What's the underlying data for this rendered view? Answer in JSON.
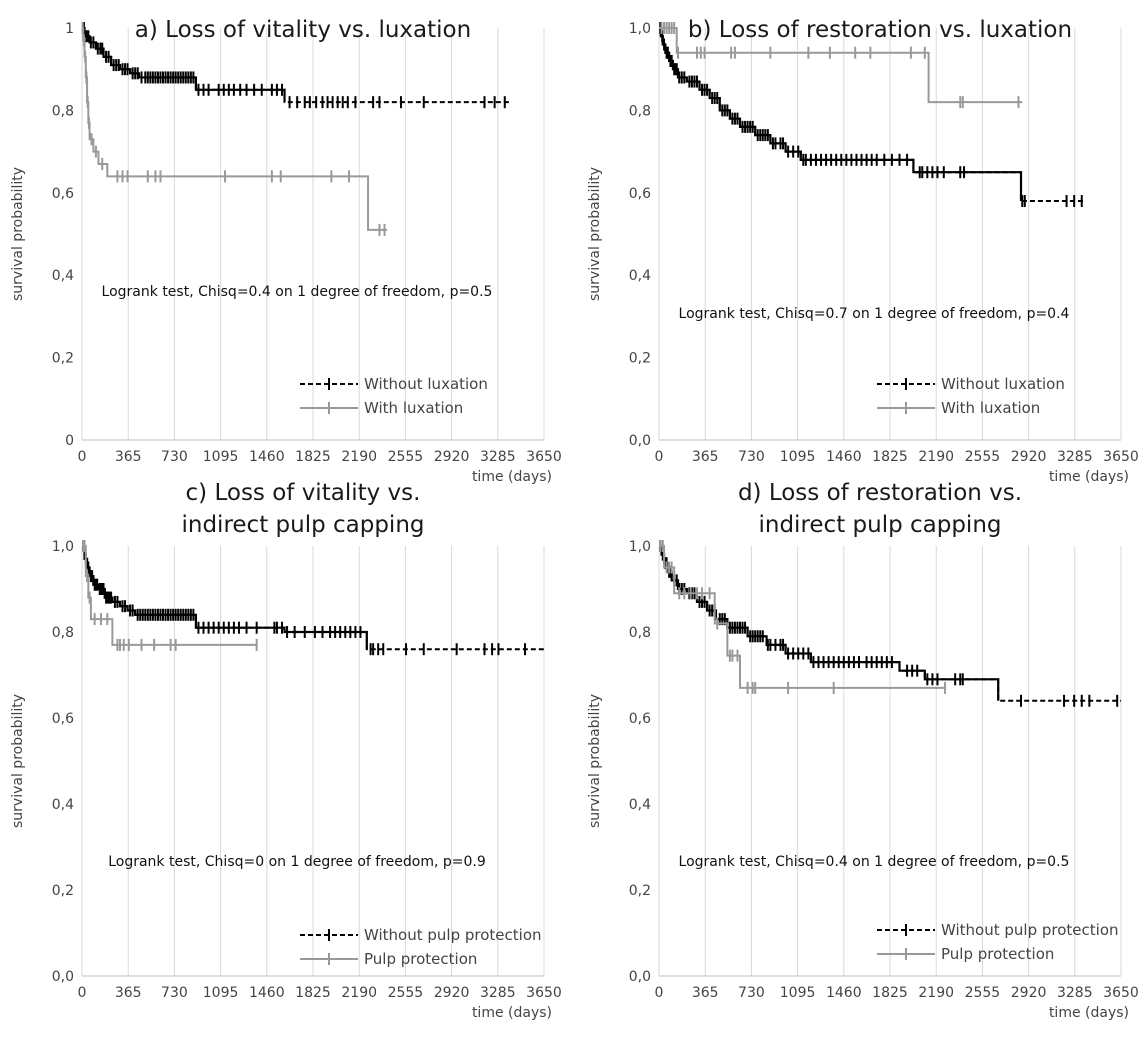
{
  "chart_data": [
    {
      "type": "line",
      "subtype": "kaplan-meier",
      "title_lines": [
        "a) Loss of vitality vs. luxation"
      ],
      "xlabel": "time (days)",
      "ylabel": "survival probability",
      "xlim": [
        0,
        3650
      ],
      "ylim": [
        0,
        1
      ],
      "x_ticks": [
        "0",
        "365",
        "730",
        "1095",
        "1460",
        "1825",
        "2190",
        "2555",
        "2920",
        "3285",
        "3650"
      ],
      "y_ticks": [
        "0",
        "0,2",
        "0,4",
        "0,6",
        "0,8",
        "1"
      ],
      "annotation": "Logrank test, Chisq=0.4 on 1 degree of freedom, p=0.5",
      "legend_position": "bottom-right",
      "grid": "vertical",
      "series": [
        {
          "name": "Without luxation",
          "color": "#000000",
          "style": "dashed-after-last-event",
          "steps": [
            [
              0,
              1
            ],
            [
              20,
              0.98
            ],
            [
              60,
              0.965
            ],
            [
              110,
              0.95
            ],
            [
              170,
              0.93
            ],
            [
              230,
              0.91
            ],
            [
              300,
              0.9
            ],
            [
              380,
              0.89
            ],
            [
              450,
              0.88
            ],
            [
              900,
              0.85
            ],
            [
              1600,
              0.82
            ]
          ],
          "end_x": 3380,
          "censored": [
            15,
            35,
            50,
            70,
            90,
            125,
            145,
            160,
            190,
            210,
            250,
            270,
            290,
            320,
            340,
            360,
            400,
            420,
            440,
            470,
            500,
            520,
            540,
            560,
            580,
            600,
            620,
            640,
            660,
            680,
            700,
            720,
            740,
            760,
            780,
            800,
            820,
            840,
            860,
            880,
            920,
            960,
            1000,
            1080,
            1120,
            1160,
            1200,
            1250,
            1300,
            1360,
            1420,
            1500,
            1540,
            1580,
            1640,
            1700,
            1760,
            1800,
            1850,
            1900,
            1940,
            1980,
            2020,
            2060,
            2100,
            2160,
            2300,
            2350,
            2520,
            2700,
            3180,
            3260,
            3340
          ]
        },
        {
          "name": "With luxation",
          "color": "#999999",
          "style": "solid",
          "steps": [
            [
              0,
              1
            ],
            [
              10,
              0.97
            ],
            [
              20,
              0.93
            ],
            [
              30,
              0.88
            ],
            [
              40,
              0.82
            ],
            [
              50,
              0.77
            ],
            [
              60,
              0.73
            ],
            [
              90,
              0.7
            ],
            [
              130,
              0.67
            ],
            [
              200,
              0.64
            ],
            [
              2260,
              0.51
            ]
          ],
          "end_x": 2410,
          "censored": [
            5,
            15,
            25,
            35,
            45,
            55,
            75,
            110,
            160,
            280,
            320,
            360,
            520,
            580,
            620,
            1130,
            1500,
            1570,
            1970,
            2110,
            2350,
            2390
          ]
        }
      ]
    },
    {
      "type": "line",
      "subtype": "kaplan-meier",
      "title_lines": [
        "b) Loss of restoration vs. luxation"
      ],
      "xlabel": "time (days)",
      "ylabel": "survival probability",
      "xlim": [
        0,
        3650
      ],
      "ylim": [
        0,
        1
      ],
      "x_ticks": [
        "0",
        "365",
        "730",
        "1095",
        "1460",
        "1825",
        "2190",
        "2555",
        "2920",
        "3285",
        "3650"
      ],
      "y_ticks": [
        "0,0",
        "0,2",
        "0,4",
        "0,6",
        "0,8",
        "1,0"
      ],
      "annotation": "Logrank test, Chisq=0.7 on 1 degree of freedom, p=0.4",
      "legend_position": "bottom-right",
      "grid": "vertical",
      "series": [
        {
          "name": "Without luxation",
          "color": "#000000",
          "style": "dashed-after-last-event",
          "steps": [
            [
              0,
              1
            ],
            [
              15,
              0.98
            ],
            [
              30,
              0.96
            ],
            [
              50,
              0.94
            ],
            [
              80,
              0.92
            ],
            [
              110,
              0.9
            ],
            [
              150,
              0.88
            ],
            [
              220,
              0.87
            ],
            [
              320,
              0.85
            ],
            [
              400,
              0.83
            ],
            [
              480,
              0.8
            ],
            [
              560,
              0.78
            ],
            [
              640,
              0.76
            ],
            [
              760,
              0.74
            ],
            [
              880,
              0.72
            ],
            [
              1000,
              0.7
            ],
            [
              1120,
              0.68
            ],
            [
              2010,
              0.65
            ],
            [
              2860,
              0.58
            ]
          ],
          "end_x": 3370,
          "censored": [
            10,
            25,
            40,
            60,
            70,
            90,
            100,
            120,
            130,
            140,
            160,
            180,
            200,
            240,
            260,
            280,
            300,
            340,
            360,
            380,
            420,
            440,
            460,
            500,
            520,
            540,
            580,
            600,
            620,
            660,
            680,
            700,
            720,
            740,
            780,
            800,
            820,
            840,
            860,
            900,
            920,
            960,
            980,
            1020,
            1060,
            1100,
            1140,
            1160,
            1200,
            1240,
            1280,
            1320,
            1360,
            1400,
            1440,
            1480,
            1520,
            1560,
            1600,
            1640,
            1680,
            1720,
            1780,
            1840,
            1900,
            1960,
            2060,
            2080,
            2120,
            2160,
            2200,
            2250,
            2380,
            2410,
            2870,
            2890,
            3220,
            3280,
            3340
          ]
        },
        {
          "name": "With luxation",
          "color": "#999999",
          "style": "solid",
          "steps": [
            [
              0,
              1
            ],
            [
              140,
              0.94
            ],
            [
              2130,
              0.82
            ]
          ],
          "end_x": 2870,
          "censored": [
            20,
            40,
            60,
            80,
            100,
            120,
            150,
            300,
            330,
            360,
            570,
            600,
            880,
            1180,
            1350,
            1550,
            1670,
            1990,
            2100,
            2380,
            2400,
            2840
          ]
        }
      ]
    },
    {
      "type": "line",
      "subtype": "kaplan-meier",
      "title_lines": [
        "c) Loss of vitality vs.",
        "indirect pulp capping"
      ],
      "xlabel": "time (days)",
      "ylabel": "survival probability",
      "xlim": [
        0,
        3650
      ],
      "ylim": [
        0,
        1
      ],
      "x_ticks": [
        "0",
        "365",
        "730",
        "1095",
        "1460",
        "1825",
        "2190",
        "2555",
        "2920",
        "3285",
        "3650"
      ],
      "y_ticks": [
        "0,0",
        "0,2",
        "0,4",
        "0,6",
        "0,8",
        "1,0"
      ],
      "annotation": "Logrank test, Chisq=0 on 1 degree of freedom, p=0.9",
      "legend_position": "bottom-right",
      "grid": "vertical",
      "series": [
        {
          "name": "Without pulp protection",
          "color": "#000000",
          "style": "dashed-after-last-event",
          "steps": [
            [
              0,
              1
            ],
            [
              20,
              0.97
            ],
            [
              40,
              0.95
            ],
            [
              60,
              0.93
            ],
            [
              90,
              0.91
            ],
            [
              130,
              0.9
            ],
            [
              180,
              0.88
            ],
            [
              240,
              0.87
            ],
            [
              300,
              0.86
            ],
            [
              360,
              0.85
            ],
            [
              420,
              0.84
            ],
            [
              900,
              0.81
            ],
            [
              1600,
              0.8
            ],
            [
              2250,
              0.76
            ]
          ],
          "end_x": 3650,
          "censored": [
            10,
            30,
            50,
            70,
            80,
            100,
            110,
            120,
            140,
            150,
            160,
            170,
            190,
            200,
            210,
            220,
            230,
            260,
            280,
            320,
            340,
            380,
            400,
            440,
            460,
            480,
            500,
            520,
            540,
            560,
            580,
            600,
            620,
            640,
            660,
            680,
            700,
            720,
            740,
            760,
            780,
            800,
            820,
            840,
            860,
            880,
            920,
            960,
            1000,
            1040,
            1080,
            1120,
            1160,
            1200,
            1240,
            1300,
            1380,
            1520,
            1540,
            1580,
            1620,
            1680,
            1760,
            1840,
            1900,
            1960,
            2000,
            2040,
            2080,
            2120,
            2160,
            2200,
            2280,
            2300,
            2340,
            2380,
            2560,
            2700,
            2960,
            3180,
            3240,
            3290,
            3500
          ]
        },
        {
          "name": "Pulp protection",
          "color": "#999999",
          "style": "solid",
          "steps": [
            [
              0,
              1
            ],
            [
              30,
              0.93
            ],
            [
              50,
              0.88
            ],
            [
              70,
              0.83
            ],
            [
              240,
              0.77
            ]
          ],
          "end_x": 1380,
          "censored": [
            10,
            20,
            40,
            60,
            100,
            150,
            200,
            280,
            300,
            330,
            370,
            470,
            570,
            700,
            740,
            1380
          ]
        }
      ]
    },
    {
      "type": "line",
      "subtype": "kaplan-meier",
      "title_lines": [
        "d) Loss of restoration vs.",
        "indirect pulp capping"
      ],
      "xlabel": "time (days)",
      "ylabel": "survival probability",
      "xlim": [
        0,
        3650
      ],
      "ylim": [
        0,
        1
      ],
      "x_ticks": [
        "0",
        "365",
        "730",
        "1095",
        "1460",
        "1825",
        "2190",
        "2555",
        "2920",
        "3285",
        "3650"
      ],
      "y_ticks": [
        "0,0",
        "0,2",
        "0,4",
        "0,6",
        "0,8",
        "1,0"
      ],
      "annotation": "Logrank test, Chisq=0.4 on 1 degree of freedom, p=0.5",
      "legend_position": "bottom-right",
      "grid": "vertical",
      "series": [
        {
          "name": "Without pulp protection",
          "color": "#000000",
          "style": "dashed-after-last-event",
          "steps": [
            [
              0,
              1
            ],
            [
              20,
              0.98
            ],
            [
              40,
              0.96
            ],
            [
              70,
              0.94
            ],
            [
              100,
              0.92
            ],
            [
              150,
              0.9
            ],
            [
              220,
              0.89
            ],
            [
              300,
              0.87
            ],
            [
              380,
              0.85
            ],
            [
              450,
              0.83
            ],
            [
              540,
              0.81
            ],
            [
              700,
              0.79
            ],
            [
              850,
              0.77
            ],
            [
              1000,
              0.75
            ],
            [
              1200,
              0.73
            ],
            [
              1900,
              0.71
            ],
            [
              2100,
              0.69
            ],
            [
              2680,
              0.64
            ]
          ],
          "end_x": 3650,
          "censored": [
            10,
            30,
            50,
            60,
            80,
            90,
            120,
            140,
            160,
            180,
            200,
            240,
            260,
            280,
            320,
            340,
            360,
            400,
            420,
            440,
            480,
            500,
            520,
            560,
            580,
            600,
            620,
            640,
            660,
            680,
            720,
            740,
            760,
            780,
            800,
            820,
            860,
            880,
            920,
            960,
            980,
            1020,
            1060,
            1100,
            1140,
            1180,
            1220,
            1260,
            1300,
            1340,
            1380,
            1420,
            1460,
            1500,
            1540,
            1580,
            1640,
            1680,
            1720,
            1760,
            1800,
            1840,
            1960,
            2000,
            2040,
            2120,
            2160,
            2200,
            2340,
            2380,
            2400,
            2860,
            3200,
            3280,
            3340,
            3400,
            3620
          ]
        },
        {
          "name": "Pulp protection",
          "color": "#999999",
          "style": "solid",
          "steps": [
            [
              0,
              1
            ],
            [
              40,
              0.95
            ],
            [
              120,
              0.89
            ],
            [
              440,
              0.82
            ],
            [
              540,
              0.745
            ],
            [
              640,
              0.67
            ]
          ],
          "end_x": 2260,
          "censored": [
            10,
            30,
            60,
            80,
            100,
            160,
            200,
            250,
            300,
            340,
            400,
            460,
            560,
            580,
            620,
            700,
            740,
            760,
            1020,
            1380,
            2260
          ]
        }
      ]
    }
  ]
}
